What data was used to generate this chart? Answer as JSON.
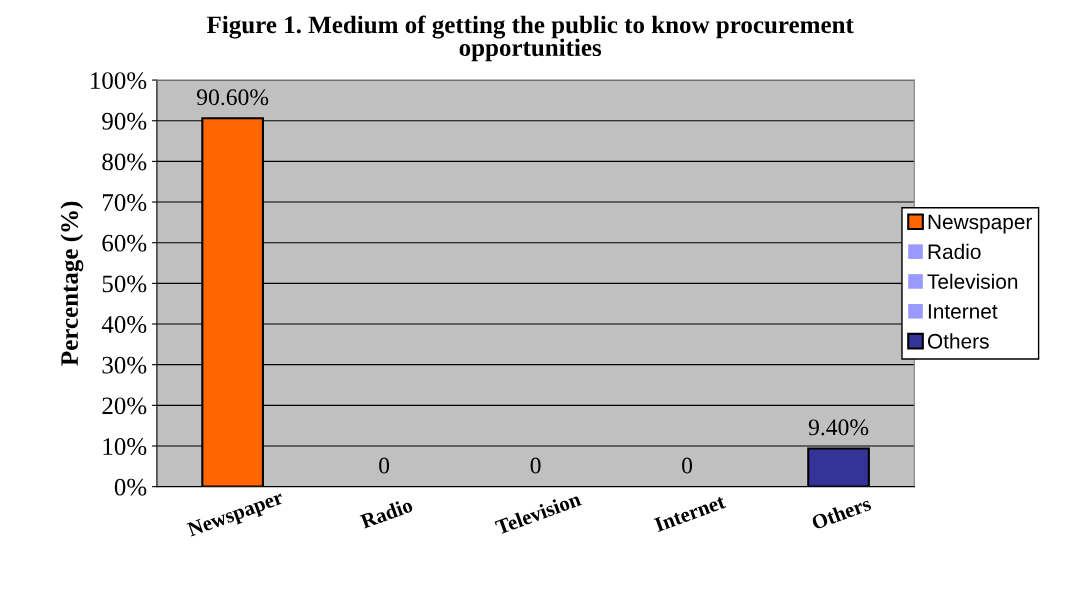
{
  "chart_data": {
    "type": "bar",
    "title": "Figure 1. Medium of getting the public to know procurement opportunities",
    "ylabel": "Percentage (%)",
    "categories": [
      "Newspaper",
      "Radio",
      "Television",
      "Internet",
      "Others"
    ],
    "series": [
      {
        "name": "Newspaper",
        "color": "#ff6600",
        "values": [
          90.6,
          null,
          null,
          null,
          null
        ],
        "value_labels": [
          "90.60%",
          null,
          null,
          null,
          null
        ]
      },
      {
        "name": "Radio",
        "color": "#9999ff",
        "values": [
          null,
          0,
          null,
          null,
          null
        ],
        "value_labels": [
          null,
          "0",
          null,
          null,
          null
        ]
      },
      {
        "name": "Television",
        "color": "#9999ff",
        "values": [
          null,
          null,
          0,
          null,
          null
        ],
        "value_labels": [
          null,
          null,
          "0",
          null,
          null
        ]
      },
      {
        "name": "Internet",
        "color": "#9999ff",
        "values": [
          null,
          null,
          null,
          0,
          null
        ],
        "value_labels": [
          null,
          null,
          null,
          "0",
          null
        ]
      },
      {
        "name": "Others",
        "color": "#333399",
        "values": [
          null,
          null,
          null,
          null,
          9.4
        ],
        "value_labels": [
          null,
          null,
          null,
          null,
          "9.40%"
        ]
      }
    ],
    "ylim": [
      0,
      100
    ],
    "yticks": [
      {
        "value": 0,
        "label": "0%"
      },
      {
        "value": 10,
        "label": "10%"
      },
      {
        "value": 20,
        "label": "20%"
      },
      {
        "value": 30,
        "label": "30%"
      },
      {
        "value": 40,
        "label": "40%"
      },
      {
        "value": 50,
        "label": "50%"
      },
      {
        "value": 60,
        "label": "60%"
      },
      {
        "value": 70,
        "label": "70%"
      },
      {
        "value": 80,
        "label": "80%"
      },
      {
        "value": 90,
        "label": "90%"
      },
      {
        "value": 100,
        "label": "100%"
      }
    ],
    "grid": "y",
    "legend": "right"
  }
}
